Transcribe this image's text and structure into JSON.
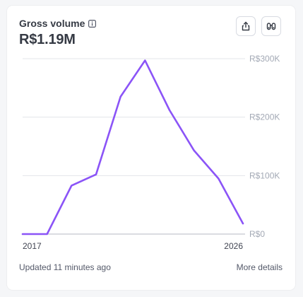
{
  "card": {
    "title": "Gross volume",
    "value": "R$1.19M",
    "info_icon": "info-icon",
    "export_icon": "share-export-icon",
    "explore_icon": "binoculars-icon"
  },
  "colors": {
    "line": "#8b54f7",
    "grid": "#e3e5ea",
    "baseline": "#b6bac3",
    "axis_text": "#a3a9b5",
    "x_text": "#414552"
  },
  "chart_data": {
    "type": "line",
    "title": "Gross volume",
    "x": [
      2017,
      2018,
      2019,
      2020,
      2021,
      2022,
      2023,
      2024,
      2025,
      2026
    ],
    "x_tick_labels": [
      "2017",
      "2026"
    ],
    "y_tick_labels": [
      "R$0",
      "R$100K",
      "R$200K",
      "R$300K"
    ],
    "ylim": [
      0,
      300000
    ],
    "grid": true,
    "series": [
      {
        "values": [
          0,
          0,
          83000,
          102000,
          235000,
          297000,
          212000,
          143000,
          95000,
          18000
        ]
      }
    ]
  },
  "footer": {
    "updated": "Updated 11 minutes ago",
    "more": "More details"
  }
}
